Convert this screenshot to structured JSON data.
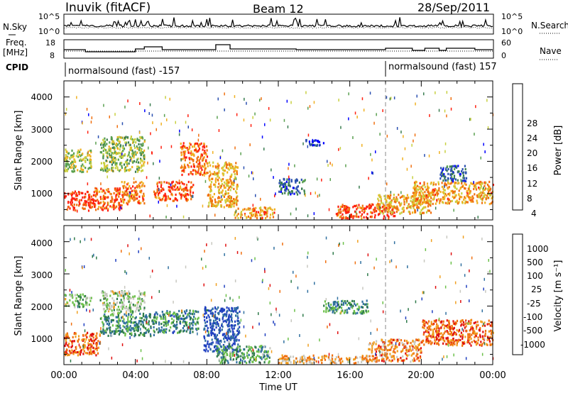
{
  "header": {
    "station": "Inuvik (fitACF)",
    "beam": "Beam 12",
    "date": "28/Sep/2011"
  },
  "top_panels": {
    "nsky_label": "N.Sky",
    "nsearch_label": "N.Search",
    "freq_label_1": "Freq.",
    "freq_label_2": "[MHz]",
    "nave_label": "Nave",
    "cpid_label": "CPID",
    "count_ticks": [
      "10^5",
      "10^0"
    ],
    "freq_ticks": [
      "18",
      "8"
    ],
    "nave_ticks": [
      "60",
      "0"
    ],
    "cpid_segments": [
      {
        "label": "normalsound (fast) -157",
        "start_hour": 0
      },
      {
        "label": "normalsound (fast) 157",
        "start_hour": 18
      }
    ]
  },
  "time_axis": {
    "label": "Time UT",
    "ticks": [
      "00:00",
      "04:00",
      "08:00",
      "12:00",
      "16:00",
      "20:00",
      "00:00"
    ]
  },
  "power_panel": {
    "ylabel": "Slant Range [km]",
    "yticks": [
      "4000",
      "3000",
      "2000",
      "1000"
    ],
    "colorbar_label": "Power [dB]",
    "colorbar_ticks": [
      "28",
      "24",
      "20",
      "16",
      "12",
      "8",
      "4"
    ]
  },
  "velocity_panel": {
    "ylabel": "Slant Range [km]",
    "yticks": [
      "4000",
      "3000",
      "2000",
      "1000"
    ],
    "colorbar_label": "Velocity [m s⁻¹]",
    "colorbar_ticks": [
      "1000",
      "500",
      "100",
      "25",
      "-25",
      "-100",
      "-500",
      "-1000"
    ]
  },
  "colors": {
    "power_scale": [
      "#0000ff",
      "#2a4fb0",
      "#3a7d50",
      "#5aa050",
      "#c8d040",
      "#f0b020",
      "#f07010",
      "#ff2010"
    ],
    "velocity_scale": [
      "#2040c0",
      "#3070a0",
      "#2e7a4a",
      "#6cc04a",
      "#c8c8c0",
      "#f0a020",
      "#f07010",
      "#e01010"
    ]
  },
  "chart_data": [
    {
      "type": "heatmap",
      "title": "Power",
      "x_range_hours": [
        0,
        24
      ],
      "y_range_km": [
        180,
        4500
      ],
      "blobs": [
        {
          "t0": 0.0,
          "t1": 1.7,
          "r0": 500,
          "r1": 1100,
          "level": 0.92
        },
        {
          "t0": 1.7,
          "t1": 3.2,
          "r0": 500,
          "r1": 1200,
          "level": 0.85
        },
        {
          "t0": 3.2,
          "t1": 4.5,
          "r0": 700,
          "r1": 1400,
          "level": 0.8
        },
        {
          "t0": 5.0,
          "t1": 7.2,
          "r0": 800,
          "r1": 1400,
          "level": 0.88
        },
        {
          "t0": 6.5,
          "t1": 8.0,
          "r0": 1600,
          "r1": 2600,
          "level": 0.84
        },
        {
          "t0": 8.0,
          "t1": 9.7,
          "r0": 600,
          "r1": 2000,
          "level": 0.7
        },
        {
          "t0": 9.5,
          "t1": 11.8,
          "r0": 250,
          "r1": 600,
          "level": 0.75
        },
        {
          "t0": 15.2,
          "t1": 18.5,
          "r0": 250,
          "r1": 700,
          "level": 0.9
        },
        {
          "t0": 17.5,
          "t1": 20.5,
          "r0": 400,
          "r1": 1000,
          "level": 0.7
        },
        {
          "t0": 19.5,
          "t1": 24.0,
          "r0": 700,
          "r1": 1400,
          "level": 0.72
        },
        {
          "t0": 0.0,
          "t1": 1.5,
          "r0": 1700,
          "r1": 2400,
          "level": 0.55
        },
        {
          "t0": 2.0,
          "t1": 4.5,
          "r0": 1700,
          "r1": 2800,
          "level": 0.5
        },
        {
          "t0": 12.0,
          "t1": 13.5,
          "r0": 1000,
          "r1": 1500,
          "level": 0.25
        },
        {
          "t0": 13.5,
          "t1": 14.5,
          "r0": 2500,
          "r1": 2700,
          "level": 0.18
        },
        {
          "t0": 21.0,
          "t1": 22.5,
          "r0": 1400,
          "r1": 1900,
          "level": 0.22
        }
      ]
    },
    {
      "type": "heatmap",
      "title": "Velocity",
      "x_range_hours": [
        0,
        24
      ],
      "y_range_km": [
        180,
        4500
      ],
      "blobs": [
        {
          "t0": 0.0,
          "t1": 2.0,
          "r0": 500,
          "r1": 1200,
          "level": 0.82
        },
        {
          "t0": 0.0,
          "t1": 1.5,
          "r0": 2000,
          "r1": 2400,
          "level": 0.5
        },
        {
          "t0": 2.0,
          "t1": 4.5,
          "r0": 1800,
          "r1": 2500,
          "level": 0.48
        },
        {
          "t0": 2.0,
          "t1": 5.0,
          "r0": 1100,
          "r1": 1800,
          "level": 0.3
        },
        {
          "t0": 5.0,
          "t1": 7.5,
          "r0": 1200,
          "r1": 1900,
          "level": 0.28
        },
        {
          "t0": 7.8,
          "t1": 9.8,
          "r0": 600,
          "r1": 2000,
          "level": 0.08
        },
        {
          "t0": 8.5,
          "t1": 11.5,
          "r0": 250,
          "r1": 800,
          "level": 0.35
        },
        {
          "t0": 12.0,
          "t1": 17.0,
          "r0": 250,
          "r1": 500,
          "level": 0.7
        },
        {
          "t0": 17.0,
          "t1": 20.0,
          "r0": 300,
          "r1": 1000,
          "level": 0.75
        },
        {
          "t0": 20.0,
          "t1": 24.0,
          "r0": 800,
          "r1": 1600,
          "level": 0.82
        },
        {
          "t0": 14.5,
          "t1": 17.0,
          "r0": 1800,
          "r1": 2200,
          "level": 0.3
        }
      ]
    }
  ]
}
